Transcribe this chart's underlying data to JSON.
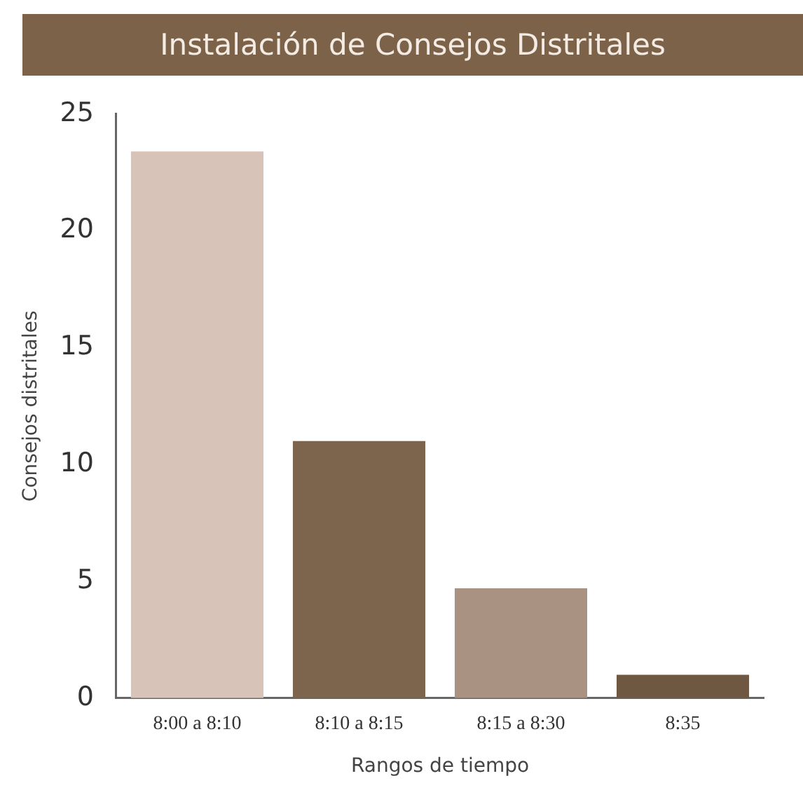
{
  "chart_data": {
    "type": "bar",
    "title": "Instalación de Consejos Distritales",
    "xlabel": "Rangos de tiempo",
    "ylabel": "Consejos distritales",
    "categories": [
      "8:00 a 8:10",
      "8:10 a 8:15",
      "8:15 a 8:30",
      "8:35"
    ],
    "values": [
      23.4,
      11,
      4.7,
      1
    ],
    "colors": [
      "#d8c3b9",
      "#7d644d",
      "#a99282",
      "#6e5842"
    ],
    "ylim": [
      0,
      25
    ],
    "yticks": [
      0,
      5,
      10,
      15,
      20,
      25
    ],
    "grid": false,
    "legend": false
  }
}
